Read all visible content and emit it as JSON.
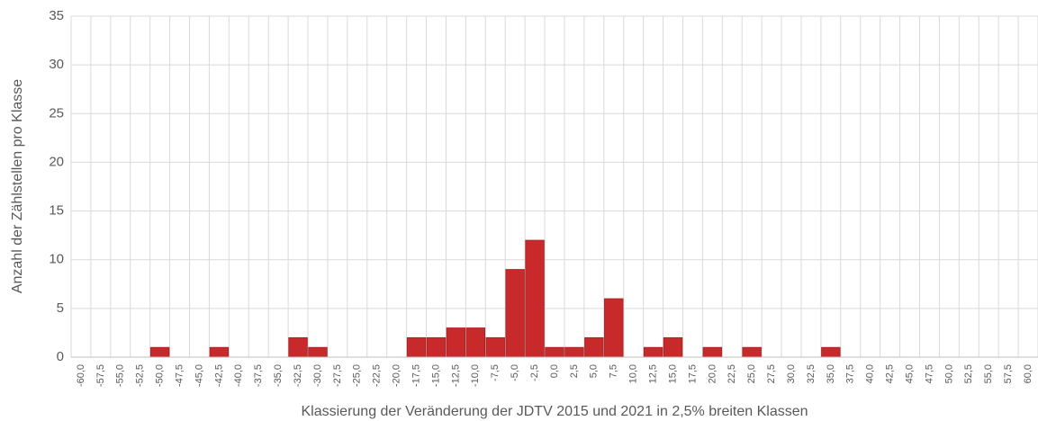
{
  "chart_data": {
    "type": "bar",
    "x_label": "Klassierung der Veränderung der JDTV 2015 und 2021 in 2,5% breiten Klassen",
    "y_label": "Anzahl der Zählstellen pro Klasse",
    "categories": [
      "-60,0",
      "-57,5",
      "-55,0",
      "-52,5",
      "-50,0",
      "-47,5",
      "-45,0",
      "-42,5",
      "-40,0",
      "-37,5",
      "-35,0",
      "-32,5",
      "-30,0",
      "-27,5",
      "-25,0",
      "-22,5",
      "-20,0",
      "-17,5",
      "-15,0",
      "-12,5",
      "-10,0",
      "-7,5",
      "-5,0",
      "-2,5",
      "0,0",
      "2,5",
      "5,0",
      "7,5",
      "10,0",
      "12,5",
      "15,0",
      "17,5",
      "20,0",
      "22,5",
      "25,0",
      "27,5",
      "30,0",
      "32,5",
      "35,0",
      "37,5",
      "40,0",
      "42,5",
      "45,0",
      "47,5",
      "50,0",
      "52,5",
      "55,0",
      "57,5",
      "60,0"
    ],
    "values": [
      0,
      0,
      0,
      0,
      1,
      0,
      0,
      1,
      0,
      0,
      0,
      2,
      1,
      0,
      0,
      0,
      0,
      2,
      2,
      3,
      3,
      2,
      9,
      12,
      1,
      1,
      2,
      6,
      0,
      1,
      2,
      0,
      1,
      0,
      1,
      0,
      0,
      0,
      1,
      0,
      0,
      0,
      0,
      0,
      0,
      0,
      0,
      0,
      0
    ],
    "color": "#c82a2c",
    "ylim": [
      0,
      35
    ],
    "yticks": [
      0,
      5,
      10,
      15,
      20,
      25,
      30,
      35
    ],
    "grid": true
  }
}
